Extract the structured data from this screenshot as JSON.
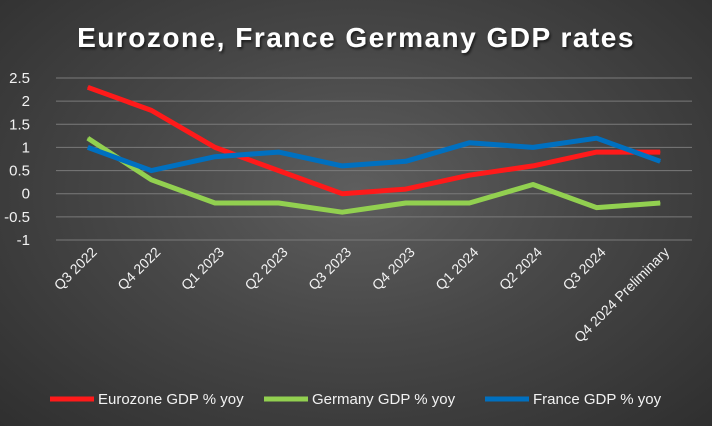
{
  "chart_data": {
    "type": "line",
    "title": "Eurozone, France Germany GDP rates",
    "xlabel": "",
    "ylabel": "",
    "categories": [
      "Q3 2022",
      "Q4 2022",
      "Q1 2023",
      "Q2 2023",
      "Q3 2023",
      "Q4 2023",
      "Q1 2024",
      "Q2 2024",
      "Q3 2024",
      "Q4 2024 Preliminary"
    ],
    "y_ticks": [
      "2.5",
      "2",
      "1.5",
      "1",
      "0.5",
      "0",
      "-0.5",
      "-1"
    ],
    "ylim": [
      -1,
      2.5
    ],
    "grid": true,
    "legend_position": "bottom",
    "series": [
      {
        "name": "Eurozone GDP % yoy",
        "color": "#ff1a1a",
        "values": [
          2.3,
          1.8,
          1.0,
          0.5,
          0.0,
          0.1,
          0.4,
          0.6,
          0.9,
          0.9
        ]
      },
      {
        "name": "Germany GDP % yoy",
        "color": "#92d050",
        "values": [
          1.2,
          0.3,
          -0.2,
          -0.2,
          -0.4,
          -0.2,
          -0.2,
          0.2,
          -0.3,
          -0.2
        ]
      },
      {
        "name": "France GDP % yoy",
        "color": "#0070c0",
        "values": [
          1.0,
          0.5,
          0.8,
          0.9,
          0.6,
          0.7,
          1.1,
          1.0,
          1.2,
          0.7
        ]
      }
    ]
  }
}
